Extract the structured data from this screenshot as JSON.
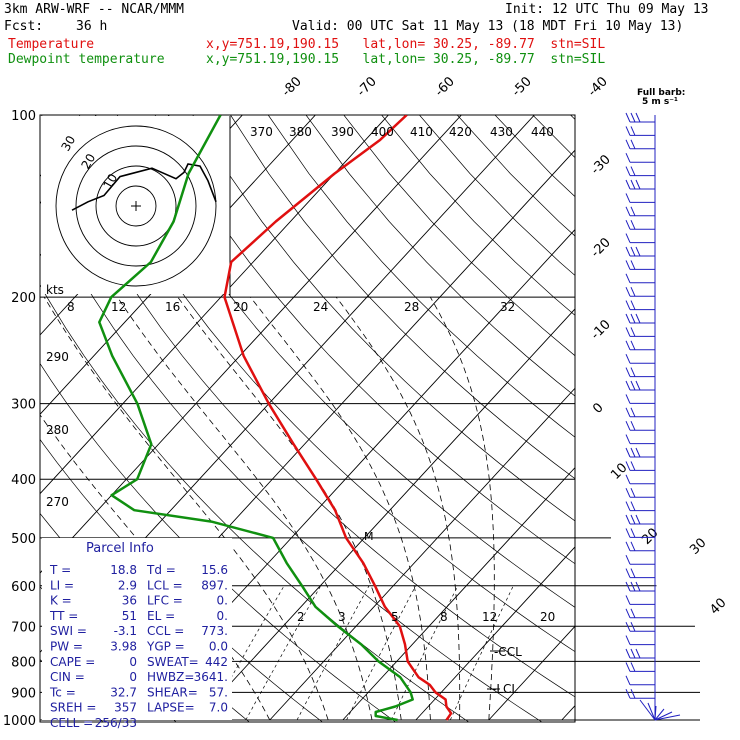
{
  "header": {
    "model": "3km ARW-WRF -- NCAR/MMM",
    "init": "Init: 12 UTC Thu 09 May 13",
    "fcst_label": "Fcst:",
    "fcst_value": "36 h",
    "valid": "Valid: 00 UTC Sat 11 May 13 (18 MDT Fri 10 May 13)",
    "temp_label": "Temperature",
    "temp_loc": "x,y=751.19,190.15   lat,lon= 30.25, -89.77  stn=SIL",
    "dew_label": "Dewpoint temperature",
    "dew_loc": "x,y=751.19,190.15   lat,lon= 30.25, -89.77  stn=SIL",
    "barb_label_1": "Full barb:",
    "barb_label_2": "5 m s⁻¹"
  },
  "colors": {
    "temperature": "#e01010",
    "dewpoint": "#109010",
    "wind_barbs": "#2020c0",
    "parcel_text": "#2020a0"
  },
  "chart_data": {
    "type": "line",
    "pressure_levels": [
      100,
      200,
      300,
      400,
      500,
      600,
      700,
      800,
      900,
      1000
    ],
    "pressure_labels": [
      "100",
      "200",
      "300",
      "400",
      "500",
      "600",
      "700",
      "800",
      "900",
      "1000"
    ],
    "isotherm_labels": [
      "-80",
      "-70",
      "-60",
      "-50",
      "-40",
      "-30",
      "-20",
      "-10",
      "0",
      "10",
      "20",
      "30",
      "40"
    ],
    "theta_labels": [
      "370",
      "380",
      "390",
      "400",
      "410",
      "420",
      "430",
      "440"
    ],
    "theta_side_labels": [
      "290",
      "280",
      "270"
    ],
    "mixing_ratio_labels": [
      "2",
      "3",
      "5",
      "8",
      "12",
      "20"
    ],
    "hodograph": {
      "speed_labels": [
        "8",
        "12",
        "16",
        "20",
        "24",
        "28",
        "32"
      ],
      "units": "kts",
      "ring_labels": [
        "30",
        "20",
        "10"
      ]
    },
    "series": [
      {
        "name": "Temperature",
        "points_hPa_C": [
          [
            1000,
            24.2
          ],
          [
            975,
            24.0
          ],
          [
            950,
            22.5
          ],
          [
            925,
            21.5
          ],
          [
            900,
            19.2
          ],
          [
            875,
            17.5
          ],
          [
            850,
            15.0
          ],
          [
            800,
            11.5
          ],
          [
            750,
            9.0
          ],
          [
            700,
            6.0
          ],
          [
            650,
            1.5
          ],
          [
            600,
            -2.5
          ],
          [
            550,
            -7.0
          ],
          [
            500,
            -12.5
          ],
          [
            450,
            -17.5
          ],
          [
            400,
            -24.0
          ],
          [
            350,
            -31.5
          ],
          [
            300,
            -40.0
          ],
          [
            250,
            -49.5
          ],
          [
            200,
            -59.5
          ],
          [
            175,
            -63.0
          ],
          [
            150,
            -62.0
          ],
          [
            125,
            -60.0
          ],
          [
            110,
            -58.0
          ],
          [
            100,
            -57.5
          ]
        ]
      },
      {
        "name": "Dewpoint temperature",
        "points_hPa_C": [
          [
            1000,
            17.5
          ],
          [
            985,
            14.0
          ],
          [
            970,
            13.5
          ],
          [
            950,
            15.5
          ],
          [
            925,
            17.0
          ],
          [
            900,
            15.8
          ],
          [
            850,
            12.5
          ],
          [
            800,
            7.5
          ],
          [
            750,
            3.0
          ],
          [
            700,
            -2.5
          ],
          [
            650,
            -8.0
          ],
          [
            600,
            -12.5
          ],
          [
            550,
            -17.5
          ],
          [
            500,
            -22.5
          ],
          [
            470,
            -33.0
          ],
          [
            450,
            -45.0
          ],
          [
            425,
            -50.0
          ],
          [
            400,
            -48.5
          ],
          [
            350,
            -51.0
          ],
          [
            300,
            -58.0
          ],
          [
            250,
            -67.5
          ],
          [
            220,
            -73.5
          ],
          [
            200,
            -75.0
          ],
          [
            175,
            -74.0
          ],
          [
            150,
            -76.0
          ],
          [
            125,
            -80.0
          ],
          [
            100,
            -83.0
          ]
        ]
      }
    ],
    "hodograph_trace_kts": [
      [
        -8,
        -1
      ],
      [
        -6,
        1
      ],
      [
        -4,
        2.5
      ],
      [
        -2,
        7
      ],
      [
        2,
        9
      ],
      [
        5,
        6.5
      ],
      [
        6,
        8
      ],
      [
        6.5,
        10
      ],
      [
        8,
        9.5
      ],
      [
        9,
        6
      ],
      [
        10,
        1
      ]
    ],
    "markers": [
      "M",
      "CCL",
      "LCL"
    ],
    "parcel_info": {
      "title": "Parcel Info",
      "rows": [
        [
          "T  =",
          "18.8",
          "Td =",
          "15.6"
        ],
        [
          "LI =",
          "2.9",
          "LCL =",
          "897."
        ],
        [
          "K  =",
          "36",
          "LFC =",
          "0."
        ],
        [
          "TT =",
          "51",
          "EL  =",
          "0."
        ],
        [
          "SWI =",
          "-3.1",
          "CCL =",
          "773."
        ],
        [
          "PW =",
          "3.98",
          "YGP =",
          "0.0"
        ],
        [
          "CAPE =",
          "0",
          "SWEAT=",
          "442"
        ],
        [
          "CIN =",
          "0",
          "HWBZ=",
          "3641."
        ],
        [
          "Tc =",
          "32.7",
          "SHEAR=",
          "57."
        ],
        [
          "SREH =",
          "357",
          "LAPSE=",
          "7.0"
        ],
        [
          "CELL =",
          "256/33",
          "",
          ""
        ]
      ]
    }
  }
}
